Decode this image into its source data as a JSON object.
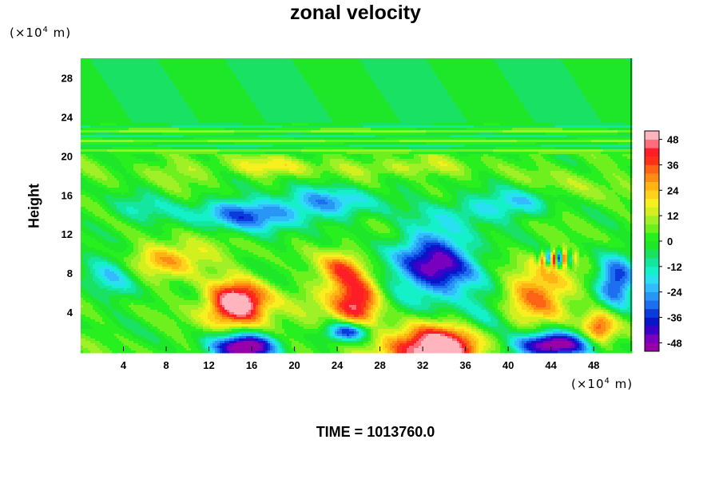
{
  "chart_data": {
    "type": "heatmap",
    "title": "zonal velocity",
    "ylabel": "Height",
    "xlabel": "",
    "y_unit": [
      "(×10",
      "4",
      " m)"
    ],
    "x_unit": [
      "(×10",
      "4",
      " m)"
    ],
    "xlim": [
      0,
      51.5
    ],
    "ylim": [
      0,
      30
    ],
    "x_ticks": [
      4,
      8,
      12,
      16,
      20,
      24,
      28,
      32,
      36,
      40,
      44,
      48
    ],
    "y_ticks": [
      4,
      8,
      12,
      16,
      20,
      24,
      28
    ],
    "colorbar": {
      "range": [
        -52,
        52
      ],
      "step": 4,
      "ticks": [
        48,
        36,
        24,
        12,
        0,
        -12,
        -24,
        -36,
        -48
      ]
    },
    "features": [
      {
        "x": 14.5,
        "y": 4.8,
        "value": 52
      },
      {
        "x": 26.0,
        "y": 5.3,
        "value": 42
      },
      {
        "x": 24.5,
        "y": 8.5,
        "value": 32
      },
      {
        "x": 8.5,
        "y": 9.5,
        "value": 26
      },
      {
        "x": 43.0,
        "y": 6.0,
        "value": 30
      },
      {
        "x": 48.5,
        "y": 2.3,
        "value": 32
      },
      {
        "x": 33.0,
        "y": 0.5,
        "value": 52
      },
      {
        "x": 33.0,
        "y": 8.5,
        "value": -44
      },
      {
        "x": 15.5,
        "y": 1.0,
        "value": -52
      },
      {
        "x": 25.0,
        "y": 2.0,
        "value": -40
      },
      {
        "x": 44.0,
        "y": 1.0,
        "value": -52
      },
      {
        "x": 50.0,
        "y": 7.0,
        "value": -36
      },
      {
        "x": 16.0,
        "y": 14.0,
        "value": -30
      },
      {
        "x": 24.0,
        "y": 15.5,
        "value": -22
      },
      {
        "x": 37.0,
        "y": 14.5,
        "value": -16
      },
      {
        "x": 18.0,
        "y": 19.0,
        "value": 20
      },
      {
        "x": 30.0,
        "y": 18.5,
        "value": 16
      },
      {
        "x": 3.0,
        "y": 8.0,
        "value": -18
      }
    ],
    "time_label": "TIME = 1013760.0"
  }
}
